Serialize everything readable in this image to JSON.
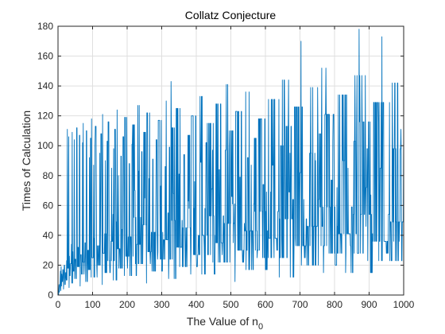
{
  "chart_data": {
    "type": "line",
    "title": "Collatz Conjecture",
    "xlabel": "The Value of n",
    "xlabel_subscript": "0",
    "ylabel": "Times of Calculation",
    "xlim": [
      0,
      1000
    ],
    "ylim": [
      0,
      180
    ],
    "xticks": [
      0,
      100,
      200,
      300,
      400,
      500,
      600,
      700,
      800,
      900,
      1000
    ],
    "yticks": [
      0,
      20,
      40,
      60,
      80,
      100,
      120,
      140,
      160,
      180
    ],
    "grid": true,
    "series": [
      {
        "x_from": 1,
        "x_to": 1000,
        "rule": "number of Collatz steps for each n0",
        "color": "#0072bd"
      }
    ]
  }
}
